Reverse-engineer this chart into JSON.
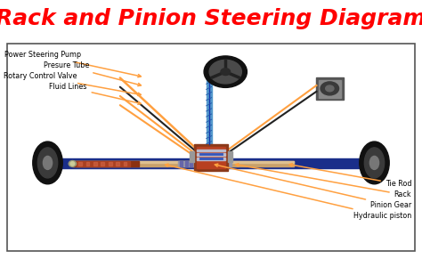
{
  "title": "Rack and Pinion Steering Diagram",
  "title_color": "#FF0000",
  "title_fontsize": 18,
  "bg_color": "#FFFFFF",
  "border_color": "#555555",
  "left_labels": [
    "Power Steering Pump",
    "Presure Tube",
    "Rotary Control Valve",
    "Fluid Lines"
  ],
  "right_labels": [
    "Tie Rod",
    "Rack",
    "Pinion Gear",
    "Hydraulic piston"
  ],
  "arrow_color": "#FFA040",
  "wheel_color": "#111111",
  "blue_frame_color": "#1a2e8a",
  "steering_col_color": "#5599CC",
  "figsize": [
    4.74,
    2.91
  ],
  "dpi": 100
}
